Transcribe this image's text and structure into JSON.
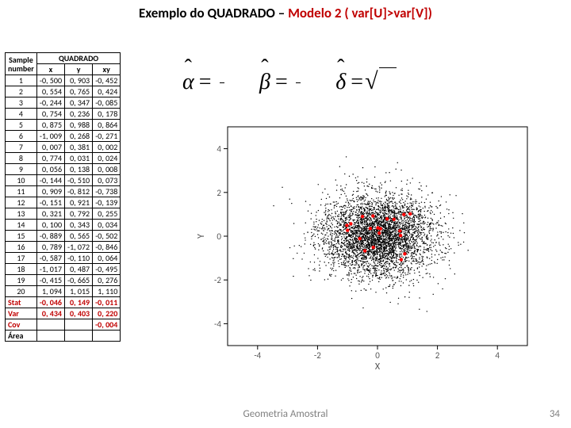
{
  "title_prefix": "Exemplo do QUADRADO – ",
  "title_highlight": "Modelo 2 ( var[U]>var[V])",
  "footer": "Geometria Amostral",
  "page_number": "34",
  "formula": {
    "alpha": "α",
    "beta": "β",
    "delta": "δ",
    "equals": "="
  },
  "table": {
    "head_sample": "Sample",
    "head_number": "number",
    "head_quadrado": "QUADRADO",
    "cols": [
      "x",
      "y",
      "xy"
    ],
    "rows": [
      [
        "1",
        "-0, 500",
        "0, 903",
        "-0, 452"
      ],
      [
        "2",
        "0, 554",
        "0, 765",
        "0, 424"
      ],
      [
        "3",
        "-0, 244",
        "0, 347",
        "-0, 085"
      ],
      [
        "4",
        "0, 754",
        "0, 236",
        "0, 178"
      ],
      [
        "5",
        "0, 875",
        "0, 988",
        "0, 864"
      ],
      [
        "6",
        "-1, 009",
        "0, 268",
        "-0, 271"
      ],
      [
        "7",
        "0, 007",
        "0, 381",
        "0, 002"
      ],
      [
        "8",
        "0, 774",
        "0, 031",
        "0, 024"
      ],
      [
        "9",
        "0, 056",
        "0, 138",
        "0, 008"
      ],
      [
        "10",
        "-0, 144",
        "-0, 510",
        "0, 073"
      ],
      [
        "11",
        "0, 909",
        "-0, 812",
        "-0, 738"
      ],
      [
        "12",
        "-0, 151",
        "0, 921",
        "-0, 139"
      ],
      [
        "13",
        "0, 321",
        "0, 792",
        "0, 255"
      ],
      [
        "14",
        "0, 100",
        "0, 343",
        "0, 034"
      ],
      [
        "15",
        "-0, 889",
        "0, 565",
        "-0, 502"
      ],
      [
        "16",
        "0, 789",
        "-1, 072",
        "-0, 846"
      ],
      [
        "17",
        "-0, 587",
        "-0, 110",
        "0, 064"
      ],
      [
        "18",
        "-1, 017",
        "0, 487",
        "-0, 495"
      ],
      [
        "19",
        "-0, 415",
        "-0, 665",
        "0, 276"
      ],
      [
        "20",
        "1, 094",
        "1, 015",
        "1, 110"
      ]
    ],
    "stat": [
      "Stat",
      "-0, 046",
      "0, 149",
      "-0, 011"
    ],
    "var": [
      "Var",
      "0, 434",
      "0, 403",
      "0, 220"
    ],
    "cov": [
      "Cov",
      "",
      "",
      "-0, 004"
    ],
    "area": [
      "Área",
      "",
      "",
      ""
    ]
  },
  "scatter": {
    "xlabel": "X",
    "ylabel": "Y",
    "xlim": [
      -5,
      5
    ],
    "ylim": [
      -5,
      5
    ],
    "ticks": [
      -4,
      -2,
      0,
      2,
      4
    ],
    "background": "#ffffff",
    "box_color": "#000000",
    "tick_font": 11,
    "cloud": {
      "color": "#000000",
      "n": 4200,
      "center": [
        0,
        0
      ],
      "sigma": 0.95,
      "size": 0.7
    },
    "highlights": {
      "color": "#ff0000",
      "size": 2.2,
      "points": [
        [
          -0.5,
          0.9
        ],
        [
          0.55,
          0.77
        ],
        [
          -0.24,
          0.35
        ],
        [
          0.75,
          0.24
        ],
        [
          0.88,
          0.99
        ],
        [
          -1.0,
          0.27
        ],
        [
          0.01,
          0.38
        ],
        [
          0.77,
          0.03
        ],
        [
          0.06,
          0.14
        ],
        [
          -0.14,
          -0.51
        ],
        [
          0.91,
          -0.81
        ],
        [
          -0.15,
          0.92
        ],
        [
          0.32,
          0.79
        ],
        [
          0.1,
          0.34
        ],
        [
          -0.89,
          0.57
        ],
        [
          0.79,
          -1.07
        ],
        [
          -0.59,
          -0.11
        ],
        [
          -1.02,
          0.49
        ],
        [
          -0.42,
          -0.67
        ],
        [
          1.09,
          1.02
        ]
      ]
    }
  }
}
